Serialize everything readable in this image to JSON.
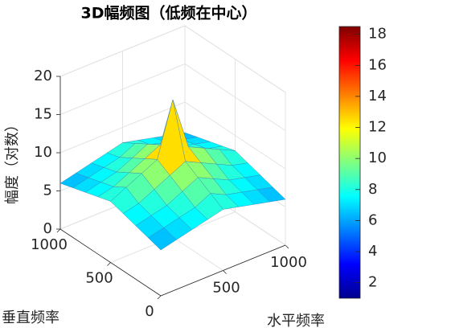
{
  "chart_data": {
    "type": "surface3d",
    "title": "3D幅频图（低频在中心）",
    "xlabel": "水平频率",
    "ylabel": "垂直频率",
    "zlabel": "幅度（对数）",
    "x": [
      0,
      125,
      250,
      375,
      500,
      625,
      750,
      875,
      1000
    ],
    "y": [
      0,
      125,
      250,
      375,
      500,
      625,
      750,
      875,
      1000
    ],
    "z": [
      [
        6,
        6.5,
        7,
        7.5,
        8,
        7.5,
        7,
        6.5,
        6
      ],
      [
        6.5,
        7,
        7.5,
        8,
        9,
        8,
        7.5,
        7,
        6.5
      ],
      [
        7,
        7.5,
        8,
        9,
        10,
        9,
        8,
        7.5,
        7
      ],
      [
        7.5,
        8,
        9,
        10,
        11,
        10,
        9,
        8,
        7.5
      ],
      [
        8,
        9,
        10,
        11,
        18,
        11,
        10,
        9,
        8
      ],
      [
        7.5,
        8,
        9,
        10,
        11,
        10,
        9,
        8,
        7.5
      ],
      [
        7,
        7.5,
        8,
        9,
        10,
        9,
        8,
        7.5,
        7
      ],
      [
        6.5,
        7,
        7.5,
        8,
        9,
        8,
        7.5,
        7,
        6.5
      ],
      [
        6,
        6.5,
        7,
        7.5,
        8,
        7.5,
        7,
        6.5,
        6
      ]
    ],
    "xlim": [
      0,
      1000
    ],
    "ylim": [
      0,
      1000
    ],
    "zlim": [
      0,
      20
    ],
    "xticks": [
      500,
      1000
    ],
    "yticks": [
      0,
      500,
      1000
    ],
    "zticks": [
      0,
      5,
      10,
      15,
      20
    ],
    "colormap": "jet",
    "clim": [
      1,
      18.5
    ],
    "colorbar_ticks": [
      2,
      4,
      6,
      8,
      10,
      12,
      14,
      16,
      18
    ],
    "grid": true
  }
}
